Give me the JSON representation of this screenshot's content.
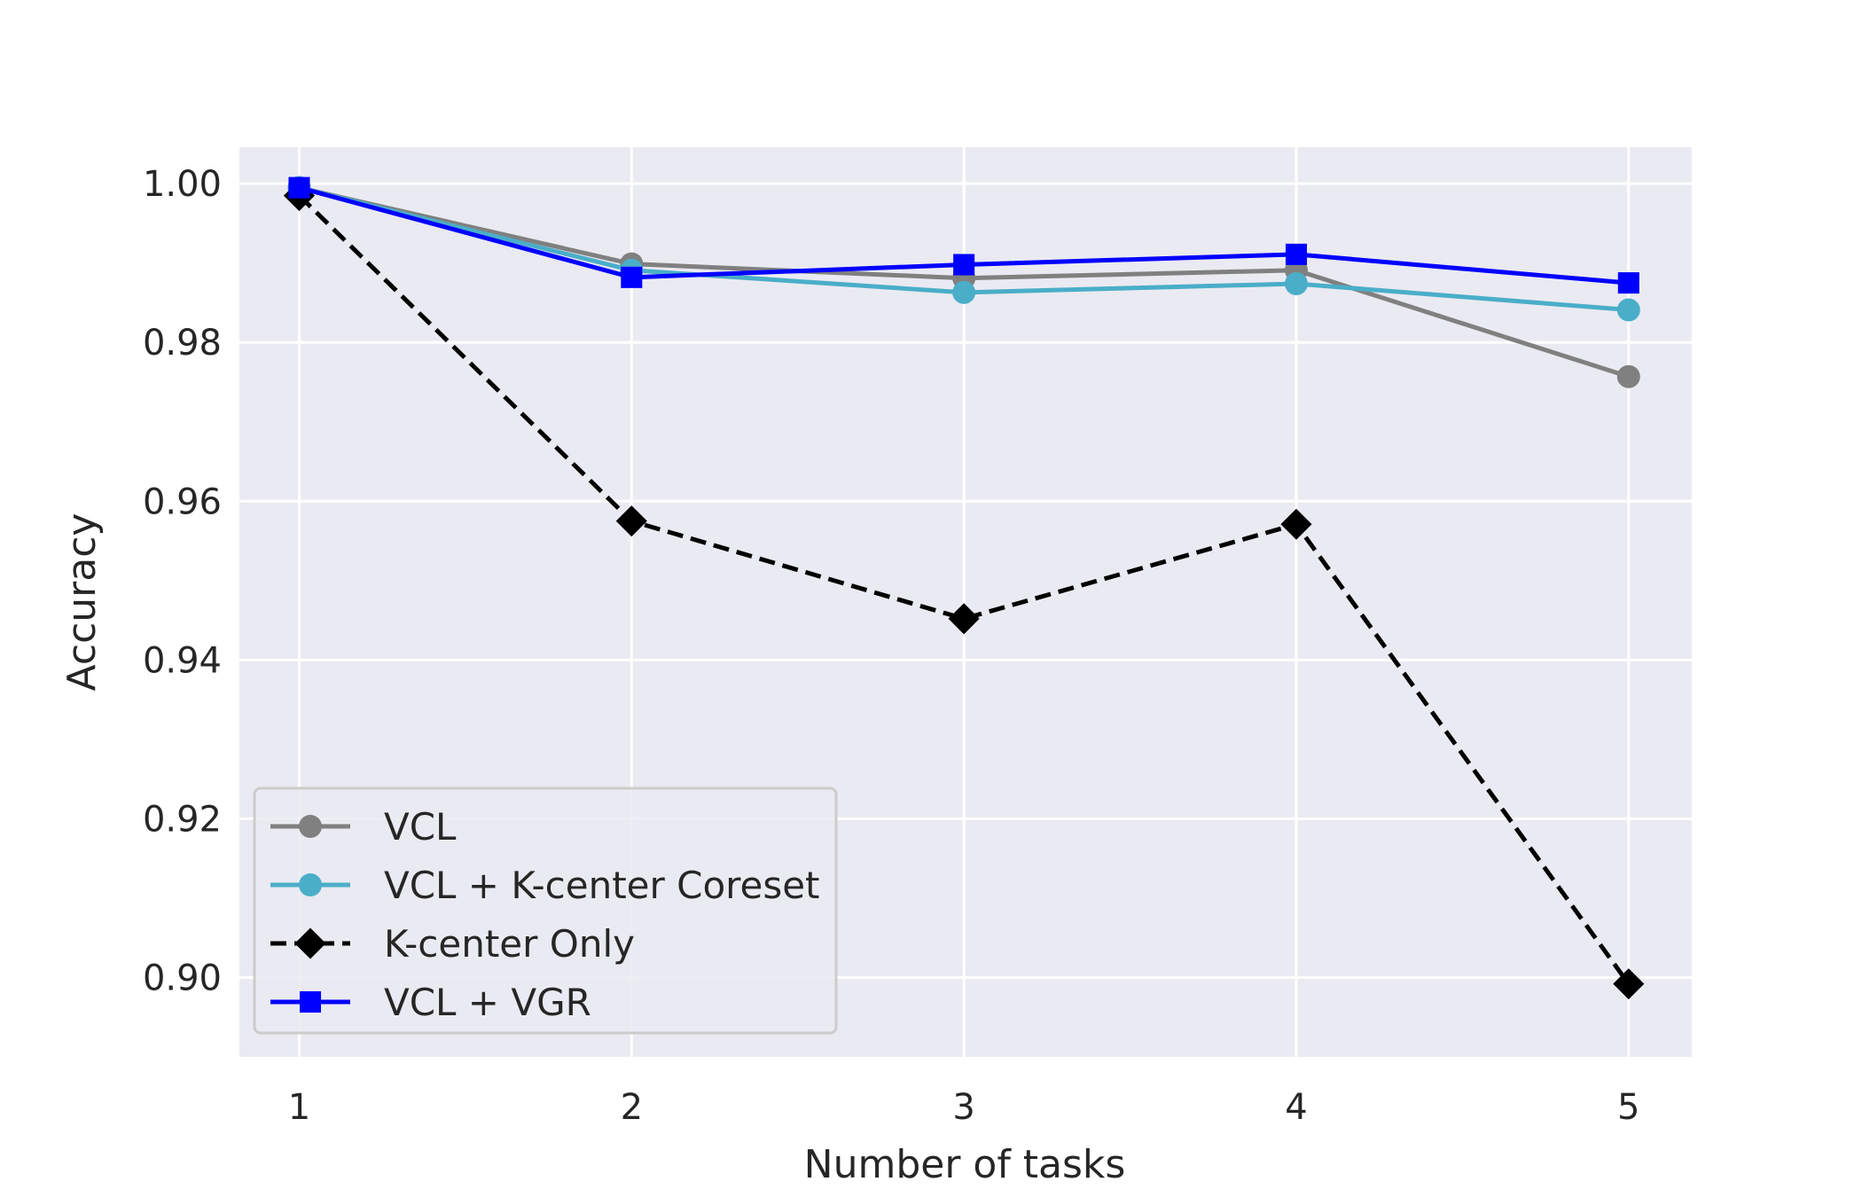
{
  "chart_data": {
    "type": "line",
    "title": "",
    "xlabel": "Number of tasks",
    "ylabel": "Accuracy",
    "x": [
      1,
      2,
      3,
      4,
      5
    ],
    "xticks": [
      "1",
      "2",
      "3",
      "4",
      "5"
    ],
    "yticks": [
      "0.90",
      "0.92",
      "0.94",
      "0.96",
      "0.98",
      "1.00"
    ],
    "xlim": [
      0.82,
      5.19
    ],
    "ylim": [
      0.89,
      1.0046
    ],
    "grid": true,
    "legend_position": "lower-left",
    "series": [
      {
        "name": "VCL",
        "values": [
          0.9995,
          0.9899,
          0.9881,
          0.9891,
          0.9757
        ],
        "color": "#808080",
        "marker": "circle",
        "dash": "solid"
      },
      {
        "name": "VCL + K-center Coreset",
        "values": [
          0.9995,
          0.9891,
          0.9863,
          0.9874,
          0.9841
        ],
        "color": "#4aaec8",
        "marker": "circle",
        "dash": "solid"
      },
      {
        "name": "K-center Only",
        "values": [
          0.9985,
          0.9575,
          0.9452,
          0.9571,
          0.8992
        ],
        "color": "#000000",
        "marker": "diamond",
        "dash": "dashed"
      },
      {
        "name": "VCL + VGR",
        "values": [
          0.9995,
          0.9882,
          0.9898,
          0.9911,
          0.9875
        ],
        "color": "#0000ff",
        "marker": "square",
        "dash": "solid"
      }
    ]
  },
  "colors": {
    "plot_background": "#eaeaf2",
    "grid": "#ffffff",
    "text": "#262626"
  }
}
